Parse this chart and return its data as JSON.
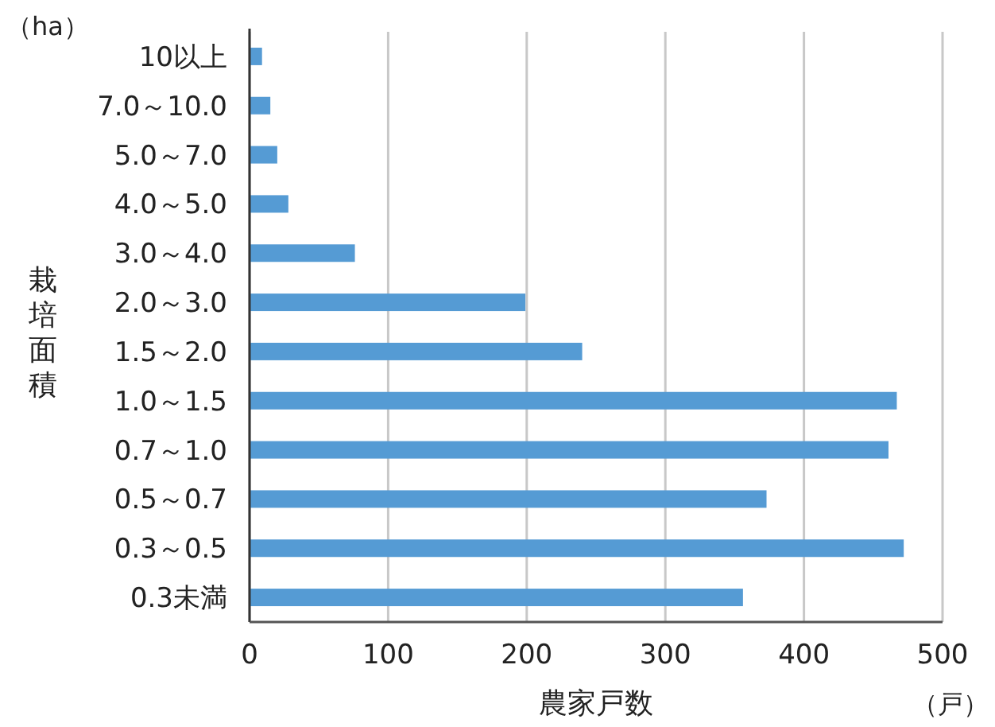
{
  "chart_data": {
    "type": "bar",
    "orientation": "horizontal",
    "categories": [
      "10以上",
      "7.0～10.0",
      "5.0～7.0",
      "4.0～5.0",
      "3.0～4.0",
      "2.0～3.0",
      "1.5～2.0",
      "1.0～1.5",
      "0.7～1.0",
      "0.5～0.7",
      "0.3～0.5",
      "0.3未満"
    ],
    "values": [
      9,
      15,
      20,
      28,
      76,
      199,
      240,
      467,
      461,
      373,
      472,
      356
    ],
    "color": "#559bd4",
    "xlim": [
      0,
      500
    ],
    "xticks": [
      0,
      100,
      200,
      300,
      400,
      500
    ],
    "xlabel": "農家戸数",
    "ylabel": "栽培面積",
    "annotations": [
      "（ha）",
      "（戸）"
    ],
    "grid": "x"
  }
}
